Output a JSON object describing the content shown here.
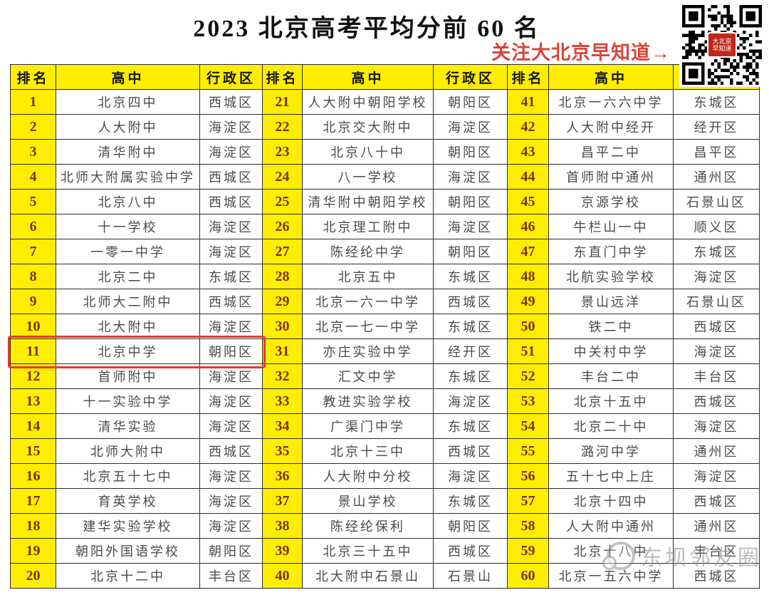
{
  "page": {
    "title": "2023 北京高考平均分前 60 名",
    "cta": "关注大北京早知道→",
    "qr": {
      "label_line1": "大北京",
      "label_line2": "早知道"
    },
    "watermark": "东坝邻友圈"
  },
  "table": {
    "headers": [
      "排名",
      "高中",
      "行政区"
    ],
    "highlight_rank": 11,
    "rows": [
      {
        "rank": 1,
        "school": "北京四中",
        "district": "西城区"
      },
      {
        "rank": 2,
        "school": "人大附中",
        "district": "海淀区"
      },
      {
        "rank": 3,
        "school": "清华附中",
        "district": "海淀区"
      },
      {
        "rank": 4,
        "school": "北师大附属实验中学",
        "district": "西城区"
      },
      {
        "rank": 5,
        "school": "北京八中",
        "district": "西城区"
      },
      {
        "rank": 6,
        "school": "十一学校",
        "district": "海淀区"
      },
      {
        "rank": 7,
        "school": "一零一中学",
        "district": "海淀区"
      },
      {
        "rank": 8,
        "school": "北京二中",
        "district": "东城区"
      },
      {
        "rank": 9,
        "school": "北师大二附中",
        "district": "西城区"
      },
      {
        "rank": 10,
        "school": "北大附中",
        "district": "海淀区"
      },
      {
        "rank": 11,
        "school": "北京中学",
        "district": "朝阳区"
      },
      {
        "rank": 12,
        "school": "首师附中",
        "district": "海淀区"
      },
      {
        "rank": 13,
        "school": "十一实验中学",
        "district": "海淀区"
      },
      {
        "rank": 14,
        "school": "清华实验",
        "district": "海淀区"
      },
      {
        "rank": 15,
        "school": "北师大附中",
        "district": "西城区"
      },
      {
        "rank": 16,
        "school": "北京五十七中",
        "district": "海淀区"
      },
      {
        "rank": 17,
        "school": "育英学校",
        "district": "海淀区"
      },
      {
        "rank": 18,
        "school": "建华实验学校",
        "district": "海淀区"
      },
      {
        "rank": 19,
        "school": "朝阳外国语学校",
        "district": "朝阳区"
      },
      {
        "rank": 20,
        "school": "北京十二中",
        "district": "丰台区"
      },
      {
        "rank": 21,
        "school": "人大附中朝阳学校",
        "district": "朝阳区"
      },
      {
        "rank": 22,
        "school": "北京交大附中",
        "district": "海淀区"
      },
      {
        "rank": 23,
        "school": "北京八十中",
        "district": "朝阳区"
      },
      {
        "rank": 24,
        "school": "八一学校",
        "district": "海淀区"
      },
      {
        "rank": 25,
        "school": "清华附中朝阳学校",
        "district": "朝阳区"
      },
      {
        "rank": 26,
        "school": "北京理工附中",
        "district": "海淀区"
      },
      {
        "rank": 27,
        "school": "陈经纶中学",
        "district": "朝阳区"
      },
      {
        "rank": 28,
        "school": "北京五中",
        "district": "东城区"
      },
      {
        "rank": 29,
        "school": "北京一六一中学",
        "district": "西城区"
      },
      {
        "rank": 30,
        "school": "北京一七一中学",
        "district": "东城区"
      },
      {
        "rank": 31,
        "school": "亦庄实验中学",
        "district": "经开区"
      },
      {
        "rank": 32,
        "school": "汇文中学",
        "district": "东城区"
      },
      {
        "rank": 33,
        "school": "教进实验学校",
        "district": "海淀区"
      },
      {
        "rank": 34,
        "school": "广渠门中学",
        "district": "东城区"
      },
      {
        "rank": 35,
        "school": "北京十三中",
        "district": "西城区"
      },
      {
        "rank": 36,
        "school": "人大附中分校",
        "district": "海淀区"
      },
      {
        "rank": 37,
        "school": "景山学校",
        "district": "东城区"
      },
      {
        "rank": 38,
        "school": "陈经纶保利",
        "district": "朝阳区"
      },
      {
        "rank": 39,
        "school": "北京三十五中",
        "district": "西城区"
      },
      {
        "rank": 40,
        "school": "北大附中石景山",
        "district": "石景山"
      },
      {
        "rank": 41,
        "school": "北京一六六中学",
        "district": "东城区"
      },
      {
        "rank": 42,
        "school": "人大附中经开",
        "district": "经开区"
      },
      {
        "rank": 43,
        "school": "昌平二中",
        "district": "昌平区"
      },
      {
        "rank": 44,
        "school": "首师附中通州",
        "district": "通州区"
      },
      {
        "rank": 45,
        "school": "京源学校",
        "district": "石景山区"
      },
      {
        "rank": 46,
        "school": "牛栏山一中",
        "district": "顺义区"
      },
      {
        "rank": 47,
        "school": "东直门中学",
        "district": "东城区"
      },
      {
        "rank": 48,
        "school": "北航实验学校",
        "district": "海淀区"
      },
      {
        "rank": 49,
        "school": "景山远洋",
        "district": "石景山区"
      },
      {
        "rank": 50,
        "school": "铁二中",
        "district": "西城区"
      },
      {
        "rank": 51,
        "school": "中关村中学",
        "district": "海淀区"
      },
      {
        "rank": 52,
        "school": "丰台二中",
        "district": "丰台区"
      },
      {
        "rank": 53,
        "school": "北京十五中",
        "district": "西城区"
      },
      {
        "rank": 54,
        "school": "北京二十中",
        "district": "海淀区"
      },
      {
        "rank": 55,
        "school": "潞河中学",
        "district": "通州区"
      },
      {
        "rank": 56,
        "school": "五十七中上庄",
        "district": "海淀区"
      },
      {
        "rank": 57,
        "school": "北京十四中",
        "district": "西城区"
      },
      {
        "rank": 58,
        "school": "人大附中通州",
        "district": "通州区"
      },
      {
        "rank": 59,
        "school": "北京十八中",
        "district": "丰台区"
      },
      {
        "rank": 60,
        "school": "北京一五六中学",
        "district": "西城区"
      }
    ]
  },
  "colors": {
    "header_yellow": "#ffee00",
    "rank_text": "#7d2f1f",
    "body_text": "#4a4a4a",
    "border": "#2e2e2e",
    "accent_red": "#d9453a",
    "highlight_border": "#e8392b"
  }
}
